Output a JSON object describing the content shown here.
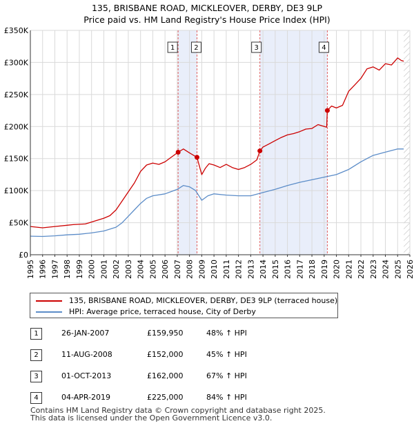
{
  "title": {
    "line1": "135, BRISBANE ROAD, MICKLEOVER, DERBY, DE3 9LP",
    "line2": "Price paid vs. HM Land Registry's House Price Index (HPI)"
  },
  "colors": {
    "property": "#cc0000",
    "hpi": "#5b8cc8",
    "shade": "#e9eefa",
    "grid": "#d9d9d9"
  },
  "chart_data": {
    "type": "line",
    "xlabel": "",
    "ylabel": "",
    "xlim": [
      1995,
      2026
    ],
    "ylim": [
      0,
      350000
    ],
    "x_ticks": [
      "1995",
      "1996",
      "1997",
      "1998",
      "1999",
      "2000",
      "2001",
      "2002",
      "2003",
      "2004",
      "2005",
      "2006",
      "2007",
      "2008",
      "2009",
      "2010",
      "2011",
      "2012",
      "2013",
      "2014",
      "2015",
      "2016",
      "2017",
      "2018",
      "2019",
      "2020",
      "2021",
      "2022",
      "2023",
      "2024",
      "2025",
      "2026"
    ],
    "y_ticks": [
      {
        "value": 0,
        "label": "£0"
      },
      {
        "value": 50000,
        "label": "£50K"
      },
      {
        "value": 100000,
        "label": "£100K"
      },
      {
        "value": 150000,
        "label": "£150K"
      },
      {
        "value": 200000,
        "label": "£200K"
      },
      {
        "value": 250000,
        "label": "£250K"
      },
      {
        "value": 300000,
        "label": "£300K"
      },
      {
        "value": 350000,
        "label": "£350K"
      }
    ],
    "shaded_spans": [
      [
        2007.07,
        2008.61
      ],
      [
        2013.75,
        2019.26
      ]
    ],
    "hatched_from": 2025.5,
    "series": [
      {
        "name": "135, BRISBANE ROAD, MICKLEOVER, DERBY, DE3 9LP (terraced house)",
        "color": "#cc0000",
        "x": [
          1995,
          1996,
          1997,
          1998,
          1998.5,
          1999,
          1999.5,
          2000,
          2000.5,
          2001,
          2001.5,
          2002,
          2002.5,
          2003,
          2003.5,
          2004,
          2004.5,
          2005,
          2005.5,
          2006,
          2006.5,
          2007.07,
          2007.5,
          2008,
          2008.61,
          2009,
          2009.3,
          2009.6,
          2010,
          2010.5,
          2011,
          2011.5,
          2012,
          2012.5,
          2013,
          2013.5,
          2013.75,
          2014,
          2014.5,
          2015,
          2015.5,
          2016,
          2016.5,
          2017,
          2017.5,
          2018,
          2018.5,
          2019.2,
          2019.26,
          2019.6,
          2020,
          2020.5,
          2021,
          2021.5,
          2022,
          2022.5,
          2023,
          2023.5,
          2024,
          2024.5,
          2025,
          2025.3,
          2025.5
        ],
        "y": [
          44000,
          42000,
          44000,
          46000,
          47000,
          47500,
          48000,
          51000,
          54000,
          57000,
          61000,
          70000,
          84000,
          98000,
          112000,
          130000,
          140000,
          143000,
          141000,
          145000,
          152000,
          159950,
          165000,
          159000,
          152000,
          125000,
          135000,
          142000,
          140000,
          136000,
          141000,
          136000,
          133000,
          136000,
          141000,
          148000,
          162000,
          168000,
          173000,
          178000,
          183000,
          187000,
          189000,
          192000,
          196000,
          197000,
          203000,
          199000,
          225000,
          232000,
          229000,
          233000,
          255000,
          265000,
          275000,
          290000,
          293000,
          288000,
          298000,
          296000,
          307000,
          303000,
          302000
        ]
      },
      {
        "name": "HPI: Average price, terraced house, City of Derby",
        "color": "#5b8cc8",
        "x": [
          1995,
          1996,
          1997,
          1998,
          1999,
          2000,
          2001,
          2002,
          2002.5,
          2003,
          2003.5,
          2004,
          2004.5,
          2005,
          2006,
          2007,
          2007.5,
          2008,
          2008.5,
          2009,
          2009.5,
          2010,
          2011,
          2012,
          2013,
          2014,
          2015,
          2016,
          2017,
          2018,
          2019,
          2020,
          2021,
          2022,
          2022.5,
          2023,
          2024,
          2025,
          2025.5
        ],
        "y": [
          29000,
          28500,
          29500,
          31000,
          32000,
          34000,
          37000,
          43000,
          50000,
          60000,
          70000,
          80000,
          88000,
          92000,
          95000,
          102000,
          108000,
          106000,
          100000,
          85000,
          92000,
          95000,
          93000,
          92000,
          92000,
          97000,
          102000,
          108000,
          113000,
          117000,
          121000,
          125000,
          133000,
          145000,
          150000,
          155000,
          160000,
          165000,
          165000
        ]
      }
    ],
    "sale_markers": [
      {
        "id": "1",
        "x": 2007.07,
        "y": 159950
      },
      {
        "id": "2",
        "x": 2008.61,
        "y": 152000
      },
      {
        "id": "3",
        "x": 2013.75,
        "y": 162000
      },
      {
        "id": "4",
        "x": 2019.26,
        "y": 225000
      }
    ]
  },
  "legend": {
    "property_label": "135, BRISBANE ROAD, MICKLEOVER, DERBY, DE3 9LP (terraced house)",
    "hpi_label": "HPI: Average price, terraced house, City of Derby"
  },
  "transactions": [
    {
      "num": "1",
      "date": "26-JAN-2007",
      "price": "£159,950",
      "hpi": "48% ↑ HPI"
    },
    {
      "num": "2",
      "date": "11-AUG-2008",
      "price": "£152,000",
      "hpi": "45% ↑ HPI"
    },
    {
      "num": "3",
      "date": "01-OCT-2013",
      "price": "£162,000",
      "hpi": "67% ↑ HPI"
    },
    {
      "num": "4",
      "date": "04-APR-2019",
      "price": "£225,000",
      "hpi": "84% ↑ HPI"
    }
  ],
  "footer": {
    "line1": "Contains HM Land Registry data © Crown copyright and database right 2025.",
    "line2": "This data is licensed under the Open Government Licence v3.0."
  }
}
